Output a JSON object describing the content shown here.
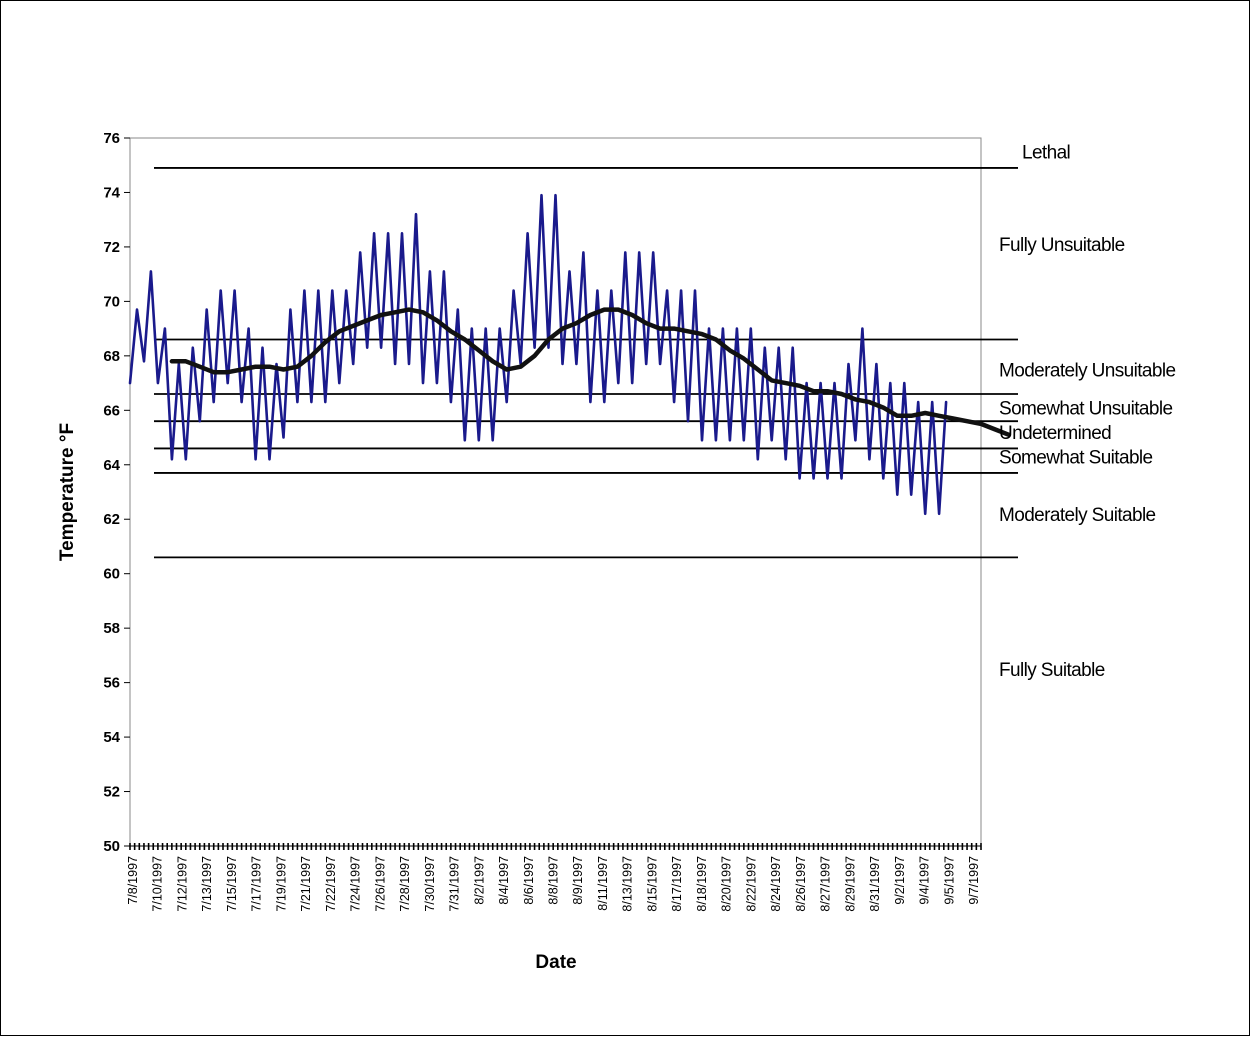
{
  "chart_data": {
    "type": "line",
    "xlabel": "Date",
    "ylabel": "Temperature °F",
    "ylim": [
      50,
      76
    ],
    "y_ticks": [
      50,
      52,
      54,
      56,
      58,
      60,
      62,
      64,
      66,
      68,
      70,
      72,
      74,
      76
    ],
    "x_range_days": [
      "7/8/1997",
      "9/7/1997"
    ],
    "x_tick_labels": [
      "7/8/1997",
      "7/10/1997",
      "7/12/1997",
      "7/13/1997",
      "7/15/1997",
      "7/17/1997",
      "7/19/1997",
      "7/21/1997",
      "7/22/1997",
      "7/24/1997",
      "7/26/1997",
      "7/28/1997",
      "7/30/1997",
      "7/31/1997",
      "8/2/1997",
      "8/4/1997",
      "8/6/1997",
      "8/8/1997",
      "8/9/1997",
      "8/11/1997",
      "8/13/1997",
      "8/15/1997",
      "8/17/1997",
      "8/18/1997",
      "8/20/1997",
      "8/22/1997",
      "8/24/1997",
      "8/26/1997",
      "8/27/1997",
      "8/29/1997",
      "8/31/1997",
      "9/2/1997",
      "9/4/1997",
      "9/5/1997",
      "9/7/1997"
    ],
    "grid": false,
    "thresholds": [
      {
        "value": 74.9,
        "label": "Lethal"
      },
      {
        "value": 68.6,
        "label": "Moderately Unsuitable"
      },
      {
        "value": 66.6,
        "label": "Somewhat Unsuitable"
      },
      {
        "value": 65.6,
        "label": "Undetermined"
      },
      {
        "value": 64.6,
        "label": "Somewhat Suitable"
      },
      {
        "value": 63.7,
        "label": "Moderately Suitable"
      },
      {
        "value": 60.6,
        "label": ""
      }
    ],
    "zones": [
      {
        "label": "Lethal",
        "value": 75.5
      },
      {
        "label": "Fully Unsuitable",
        "value": 72.1
      },
      {
        "label": "Moderately Unsuitable",
        "value": 67.5
      },
      {
        "label": "Somewhat Unsuitable",
        "value": 66.1
      },
      {
        "label": "Undetermined",
        "value": 65.2
      },
      {
        "label": "Somewhat Suitable",
        "value": 64.3
      },
      {
        "label": "Moderately Suitable",
        "value": 62.2
      },
      {
        "label": "Fully Suitable",
        "value": 56.5
      }
    ],
    "series": [
      {
        "color": "#1a1a8c",
        "kind": "daily",
        "day_start": 0,
        "step_days": 0.5,
        "values": [
          67.0,
          69.7,
          67.8,
          71.1,
          67.0,
          69.0,
          64.2,
          67.7,
          64.2,
          68.3,
          65.6,
          69.7,
          66.3,
          70.4,
          67.0,
          70.4,
          66.3,
          69.0,
          64.2,
          68.3,
          64.2,
          67.7,
          65.0,
          69.7,
          66.3,
          70.4,
          66.3,
          70.4,
          66.3,
          70.4,
          67.0,
          70.4,
          67.7,
          71.8,
          68.3,
          72.5,
          68.3,
          72.5,
          67.7,
          72.5,
          67.7,
          73.2,
          67.0,
          71.1,
          67.0,
          71.1,
          66.3,
          69.7,
          64.9,
          69.0,
          64.9,
          69.0,
          64.9,
          69.0,
          66.3,
          70.4,
          67.7,
          72.5,
          68.3,
          73.9,
          68.3,
          73.9,
          67.7,
          71.1,
          67.7,
          71.8,
          66.3,
          70.4,
          66.3,
          70.4,
          67.0,
          71.8,
          67.0,
          71.8,
          67.7,
          71.8,
          67.7,
          70.4,
          66.3,
          70.4,
          65.6,
          70.4,
          64.9,
          69.0,
          64.9,
          69.0,
          64.9,
          69.0,
          64.9,
          69.0,
          64.2,
          68.3,
          64.9,
          68.3,
          64.2,
          68.3,
          63.5,
          67.0,
          63.5,
          67.0,
          63.5,
          67.0,
          63.5,
          67.7,
          64.9,
          69.0,
          64.2,
          67.7,
          63.5,
          67.0,
          62.9,
          67.0,
          62.9,
          66.3,
          62.2,
          66.3,
          62.2,
          66.3
        ]
      },
      {
        "color": "#111111",
        "kind": "average",
        "day_start": 3,
        "step_days": 1,
        "values": [
          67.8,
          67.8,
          67.6,
          67.4,
          67.4,
          67.5,
          67.6,
          67.6,
          67.5,
          67.6,
          68.0,
          68.5,
          68.9,
          69.1,
          69.3,
          69.5,
          69.6,
          69.7,
          69.6,
          69.3,
          68.9,
          68.6,
          68.2,
          67.8,
          67.5,
          67.6,
          68.0,
          68.6,
          69.0,
          69.2,
          69.5,
          69.7,
          69.7,
          69.5,
          69.2,
          69.0,
          69.0,
          68.9,
          68.8,
          68.6,
          68.2,
          67.9,
          67.5,
          67.1,
          67.0,
          66.9,
          66.7,
          66.7,
          66.6,
          66.4,
          66.3,
          66.1,
          65.8,
          65.8,
          65.9,
          65.8,
          65.7,
          65.6,
          65.5,
          65.3,
          65.1
        ]
      }
    ]
  }
}
